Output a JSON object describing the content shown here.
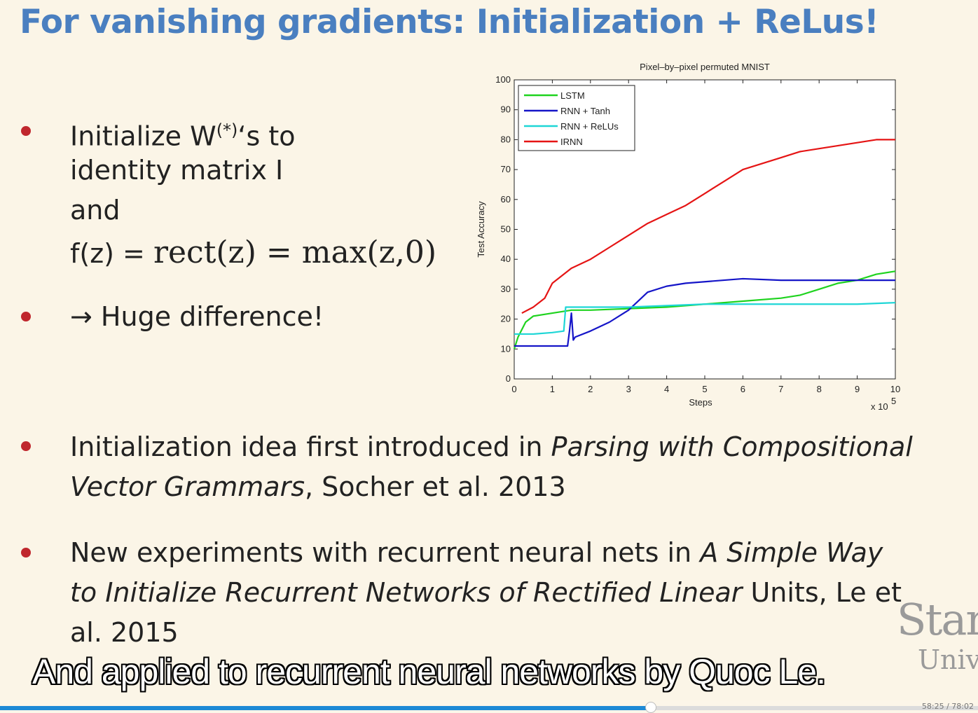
{
  "slide": {
    "title": "For vanishing gradients: Initialization + ReLus!",
    "bullet1": {
      "line1_prefix": "Initialize W",
      "line1_sup": "(*)",
      "line1_suffix": "‘s to",
      "line2": "identity matrix I",
      "line3": "and",
      "line4_prefix": "f(z)  = ",
      "line4_math": "rect(z) = max(z,0)"
    },
    "bullet2": "→ Huge difference!",
    "bullet3": {
      "prefix": "Initialization idea first introduced in ",
      "italic": "Parsing with Compositional",
      "line2_italic": "Vector Grammars",
      "line2_suffix": ", Socher et al. 2013"
    },
    "bullet4": {
      "prefix": "New experiments with recurrent neural nets in ",
      "italic1": "A Simple Way",
      "line2_italic": "to Initialize Recurrent Networks of Rectified Linear",
      "line2_suffix": " Units, Le et",
      "line3": "al. 2015"
    },
    "bullet_color": "#c0272d",
    "title_color": "#4a7fc0"
  },
  "watermark": {
    "line1": "Stan",
    "line2": "Univ"
  },
  "caption": "And applied to recurrent neural networks by Quoc Le.",
  "player": {
    "progress": 0.665,
    "time": "58:25 / 78:02"
  },
  "chart_data": {
    "type": "line",
    "title": "Pixel–by–pixel permuted MNIST",
    "xlabel": "Steps",
    "ylabel": "Test Accuracy",
    "x_multiplier_label": "x 10",
    "x_multiplier_exp": "5",
    "xlim": [
      0,
      10
    ],
    "ylim": [
      0,
      100
    ],
    "xticks": [
      "0",
      "1",
      "2",
      "3",
      "4",
      "5",
      "6",
      "7",
      "8",
      "9",
      "10"
    ],
    "yticks": [
      "0",
      "10",
      "20",
      "30",
      "40",
      "50",
      "60",
      "70",
      "80",
      "90",
      "100"
    ],
    "legend_position": "top-left",
    "series": [
      {
        "name": "LSTM",
        "color": "#1fd31f",
        "x": [
          0,
          0.1,
          0.3,
          0.5,
          1.0,
          1.5,
          2.0,
          3.0,
          4.0,
          5.0,
          6.0,
          7.0,
          7.5,
          8.0,
          8.5,
          9.0,
          9.5,
          10.0
        ],
        "y": [
          10,
          14,
          19,
          21,
          22,
          23,
          23,
          23.5,
          24,
          25,
          26,
          27,
          28,
          30,
          32,
          33,
          35,
          36
        ]
      },
      {
        "name": "RNN + Tanh",
        "color": "#1515c8",
        "x": [
          0,
          0.5,
          1.4,
          1.45,
          1.5,
          1.55,
          1.6,
          2.0,
          2.5,
          3.0,
          3.5,
          4.0,
          4.5,
          5.0,
          5.5,
          6.0,
          7.0,
          8.0,
          9.0,
          10.0
        ],
        "y": [
          11,
          11,
          11,
          16,
          22,
          13,
          14,
          16,
          19,
          23,
          29,
          31,
          32,
          32.5,
          33,
          33.5,
          33,
          33,
          33,
          33
        ]
      },
      {
        "name": "RNN + ReLUs",
        "color": "#1ed6d6",
        "x": [
          0,
          0.1,
          0.5,
          1.0,
          1.3,
          1.35,
          1.5,
          2.0,
          3.0,
          4.0,
          5.0,
          6.0,
          7.0,
          8.0,
          9.0,
          10.0
        ],
        "y": [
          15,
          15,
          15,
          15.5,
          16,
          24,
          24,
          24,
          24,
          24.5,
          25,
          25,
          25,
          25,
          25,
          25.5
        ]
      },
      {
        "name": "IRNN",
        "color": "#e51414",
        "x": [
          0.2,
          0.5,
          0.8,
          1.0,
          1.5,
          2.0,
          2.5,
          3.0,
          3.5,
          4.0,
          4.5,
          5.0,
          5.5,
          6.0,
          6.5,
          7.0,
          7.5,
          8.0,
          8.5,
          9.0,
          9.5,
          10.0
        ],
        "y": [
          22,
          24,
          27,
          32,
          37,
          40,
          44,
          48,
          52,
          55,
          58,
          62,
          66,
          70,
          72,
          74,
          76,
          77,
          78,
          79,
          80,
          80
        ]
      }
    ]
  }
}
